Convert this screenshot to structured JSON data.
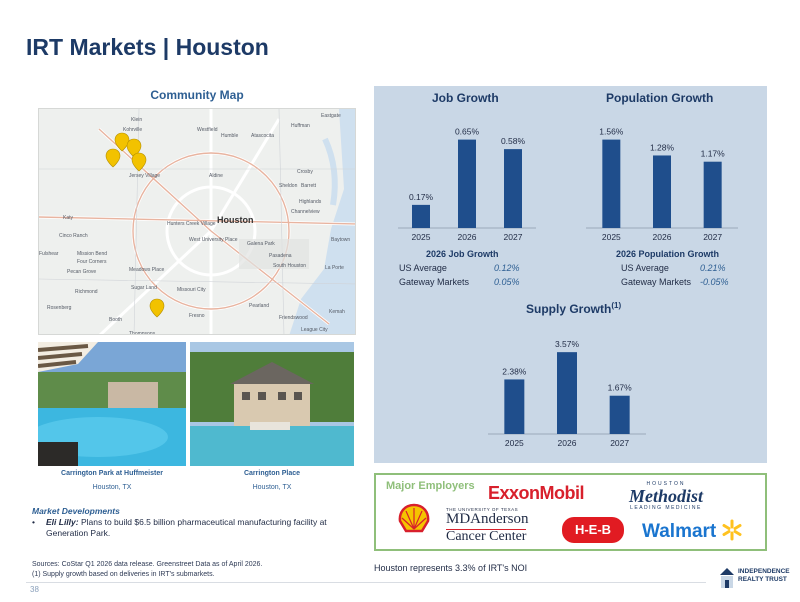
{
  "page": {
    "title": "IRT Markets | Houston",
    "page_number": "38",
    "noi_note": "Houston represents 3.3% of IRT's NOI"
  },
  "map": {
    "title": "Community Map",
    "labels": [
      "Klein",
      "Westfield",
      "Humble",
      "Atascocita",
      "Huffman",
      "Eastgate",
      "Kohrville",
      "Aldine",
      "Crosby",
      "Jersey Village",
      "Sheldon",
      "Barrett",
      "Katy",
      "Hunters Creek Village",
      "Houston",
      "Channelview",
      "Highlands",
      "Cinco Ranch",
      "West University Place",
      "Galena Park",
      "Baytown",
      "Mission Bend",
      "Four Corners",
      "Pasadena",
      "Pecan Grove",
      "Meadows Place",
      "South Houston",
      "La Porte",
      "Sugar Land",
      "Missouri City",
      "Richmond",
      "Pearland",
      "Rosenberg",
      "Fresno",
      "Friendswood",
      "Kemah",
      "League City",
      "Booth",
      "Thompsons",
      "Fulshear"
    ]
  },
  "properties": [
    {
      "name": "Carrington Park at Huffmeister",
      "location": "Houston, TX"
    },
    {
      "name": "Carrington Place",
      "location": "Houston, TX"
    }
  ],
  "market_developments": {
    "heading": "Market Developments",
    "items": [
      {
        "company": "Eli Lilly:",
        "text": "Plans to build $6.5 billion pharmaceutical manufacturing facility at Generation Park."
      }
    ]
  },
  "sources": [
    "Sources: CoStar Q1 2026 data release. Greenstreet Data as of April 2026.",
    "(1)  Supply growth based on deliveries in IRT's submarkets."
  ],
  "colors": {
    "bar": "#1f4e8c",
    "panel": "#c9d7e6",
    "title": "#1d3a66",
    "accent_green": "#8fbf7a"
  },
  "chart_data": [
    {
      "type": "bar",
      "title": "Job Growth",
      "categories": [
        "2025",
        "2026",
        "2027"
      ],
      "values": [
        0.17,
        0.65,
        0.58
      ],
      "data_labels": [
        "0.17%",
        "0.65%",
        "0.58%"
      ],
      "ylim": [
        0,
        0.75
      ]
    },
    {
      "type": "bar",
      "title": "Population Growth",
      "categories": [
        "2025",
        "2026",
        "2027"
      ],
      "values": [
        1.56,
        1.28,
        1.17
      ],
      "data_labels": [
        "1.56%",
        "1.28%",
        "1.17%"
      ],
      "ylim": [
        0,
        1.8
      ]
    },
    {
      "type": "bar",
      "title": "Supply Growth",
      "title_note": "(1)",
      "categories": [
        "2025",
        "2026",
        "2027"
      ],
      "values": [
        2.38,
        3.57,
        1.67
      ],
      "data_labels": [
        "2.38%",
        "3.57%",
        "1.67%"
      ],
      "ylim": [
        0,
        4.1
      ]
    }
  ],
  "job_summary": {
    "title": "2026 Job Growth",
    "rows": [
      {
        "label": "US Average",
        "value": "0.12%"
      },
      {
        "label": "Gateway Markets",
        "value": "0.05%"
      }
    ]
  },
  "pop_summary": {
    "title": "2026 Population Growth",
    "rows": [
      {
        "label": "US Average",
        "value": "0.21%"
      },
      {
        "label": "Gateway Markets",
        "value": "-0.05%"
      }
    ]
  },
  "employers": {
    "title": "Major Employers",
    "exxon": "ExxonMobil",
    "methodist_top": "HOUSTON",
    "methodist": "Methodist",
    "methodist_sub": "LEADING MEDICINE",
    "md_top": "THE UNIVERSITY OF TEXAS",
    "md_main": "MDAnderson",
    "md_sub": "Cancer Center",
    "heb": "H-E-B",
    "walmart": "Walmart"
  },
  "brand": {
    "line1": "INDEPENDENCE",
    "line2": "REALTY TRUST"
  }
}
